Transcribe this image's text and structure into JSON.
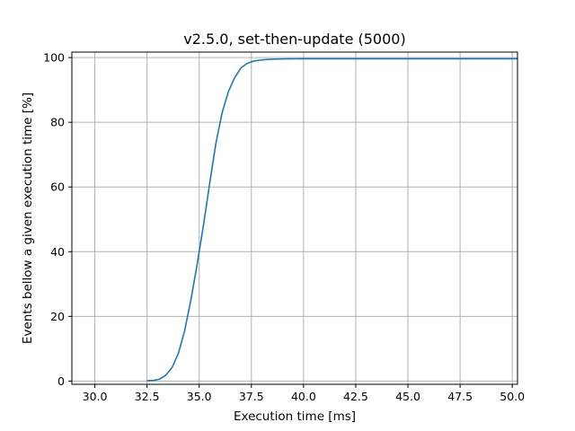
{
  "chart_data": {
    "type": "line",
    "title": "v2.5.0, set-then-update (5000)",
    "xlabel": "Execution time [ms]",
    "ylabel": "Events bellow a given execution time [%]",
    "xlim": [
      28.9,
      50.25
    ],
    "ylim": [
      -1.0,
      101.7
    ],
    "x_ticks": [
      "30.0",
      "32.5",
      "35.0",
      "37.5",
      "40.0",
      "42.5",
      "45.0",
      "47.5",
      "50.0"
    ],
    "y_ticks": [
      "0",
      "20",
      "40",
      "60",
      "80",
      "100"
    ],
    "grid": true,
    "legend": "none",
    "series": [
      {
        "color": "#1f77b4",
        "x": [
          32.5,
          32.8,
          33.1,
          33.4,
          33.7,
          34.0,
          34.3,
          34.6,
          34.9,
          35.2,
          35.5,
          35.8,
          36.1,
          36.4,
          36.7,
          37.0,
          37.3,
          37.6,
          37.9,
          38.2,
          38.5,
          38.8,
          39.2,
          39.6,
          40.0,
          41.0,
          43.0,
          45.0,
          47.5,
          50.25
        ],
        "y": [
          0.1,
          0.2,
          0.6,
          1.8,
          4.2,
          8.5,
          15.5,
          25.0,
          36.0,
          48.0,
          61.0,
          73.5,
          83.0,
          89.5,
          93.8,
          96.8,
          98.2,
          98.9,
          99.2,
          99.4,
          99.5,
          99.55,
          99.6,
          99.62,
          99.65,
          99.65,
          99.65,
          99.65,
          99.65,
          99.65
        ]
      }
    ]
  }
}
